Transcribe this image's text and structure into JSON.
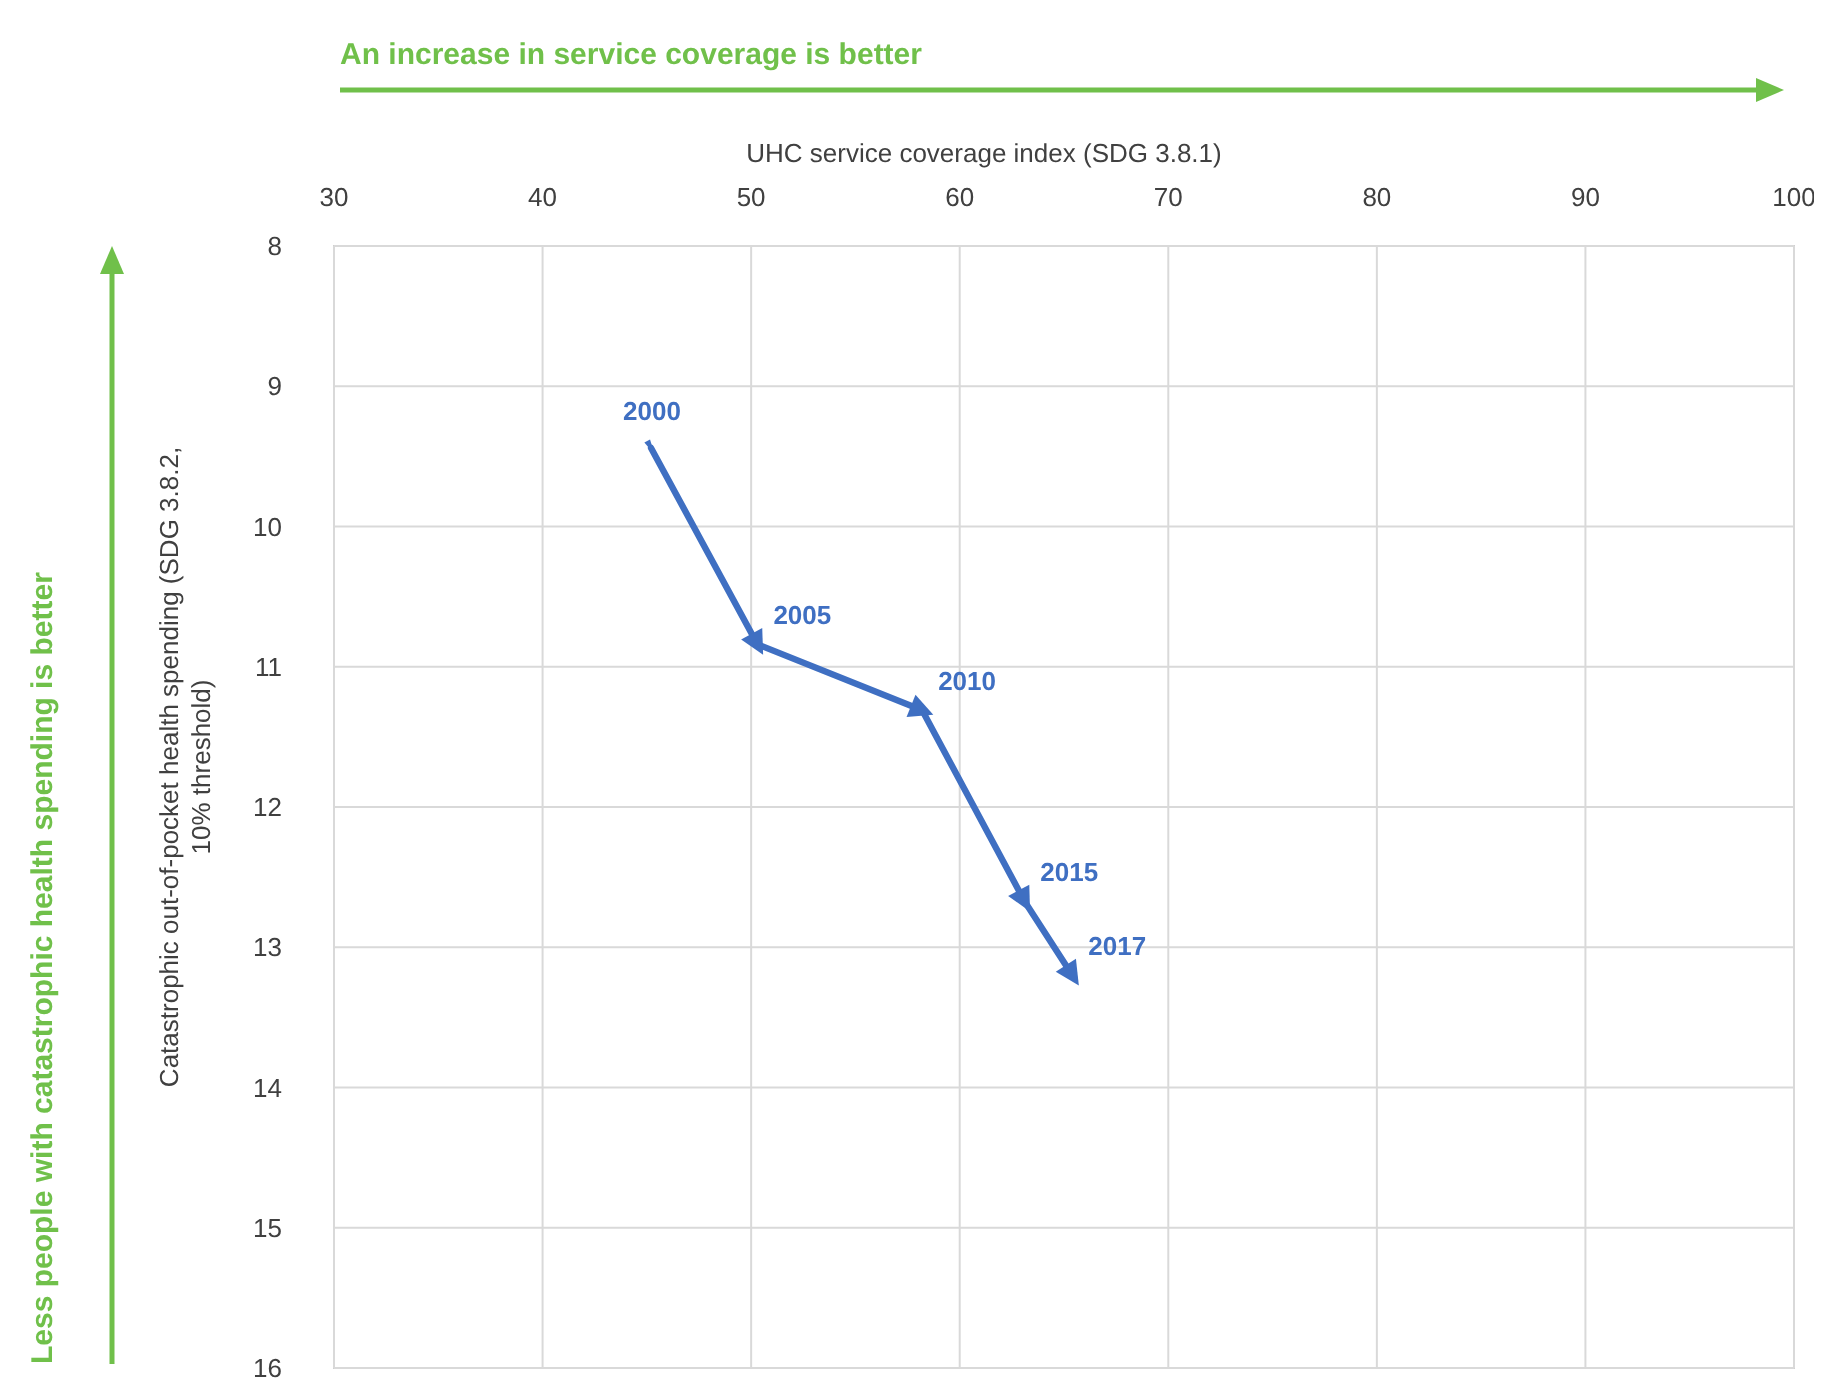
{
  "chart_data": {
    "type": "line",
    "xlabel": "UHC service coverage index (SDG 3.8.1)",
    "ylabel": "Catastrophic out-of-pocket health spending (SDG 3.8.2, 10% threshold)",
    "x": [
      45.2,
      50.3,
      58.2,
      63.1,
      65.4
    ],
    "series": [
      {
        "color": "#3f6fc2",
        "values": [
          9.44,
          10.84,
          11.31,
          12.67,
          13.2
        ]
      }
    ],
    "xlim": [
      30,
      100
    ],
    "xticks": [
      30,
      40,
      50,
      60,
      70,
      80,
      90,
      100
    ],
    "ylim": [
      16,
      8
    ],
    "yticks": [
      8,
      9,
      10,
      11,
      12,
      13,
      14,
      15,
      16
    ],
    "grid": true,
    "marker": "triangle",
    "line_style": "solid",
    "annotations": [
      "An increase in service coverage is better",
      "Less people with catastrophic health spending is better",
      {
        "text": "2000",
        "x": 45.2,
        "y": 9.44
      },
      {
        "text": "2005",
        "x": 50.3,
        "y": 10.84
      },
      {
        "text": "2010",
        "x": 58.2,
        "y": 11.31
      },
      {
        "text": "2015",
        "x": 63.1,
        "y": 12.67
      },
      {
        "text": "2017",
        "x": 65.4,
        "y": 13.2
      }
    ]
  }
}
